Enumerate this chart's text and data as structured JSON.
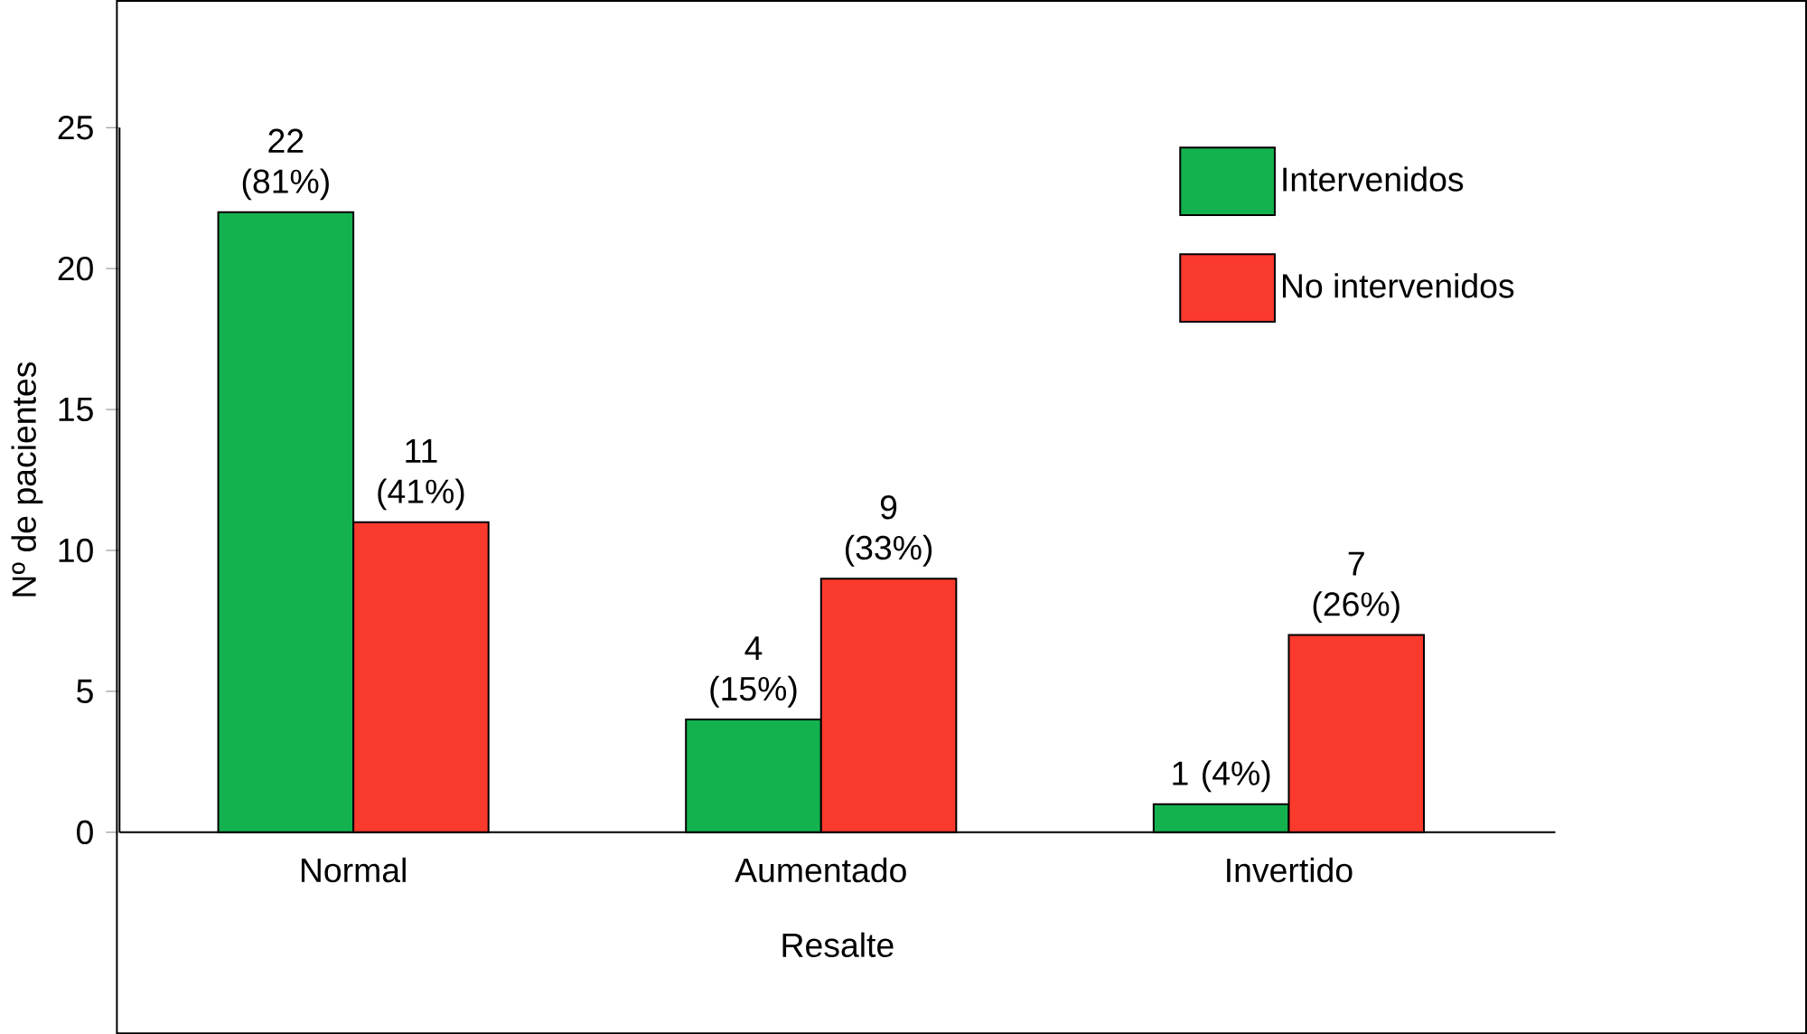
{
  "chart_data": {
    "type": "bar",
    "xlabel": "Resalte",
    "ylabel": "Nº de pacientes",
    "categories": [
      "Normal",
      "Aumentado",
      "Invertido"
    ],
    "series": [
      {
        "name": "Intervenidos",
        "color": "#14b24f",
        "values": [
          22,
          4,
          1
        ],
        "value_labels": [
          "22 (81%)",
          "4 (15%)",
          "1 (4%)"
        ]
      },
      {
        "name": "No intervenidos",
        "color": "#fa3a2c",
        "values": [
          11,
          9,
          7
        ],
        "value_labels": [
          "11 (41%)",
          "9 (33%)",
          "7 (26%)"
        ]
      }
    ],
    "ylim": [
      0,
      25
    ],
    "yticks": [
      0,
      5,
      10,
      15,
      20,
      25
    ],
    "legend": "top right",
    "grid": false
  }
}
